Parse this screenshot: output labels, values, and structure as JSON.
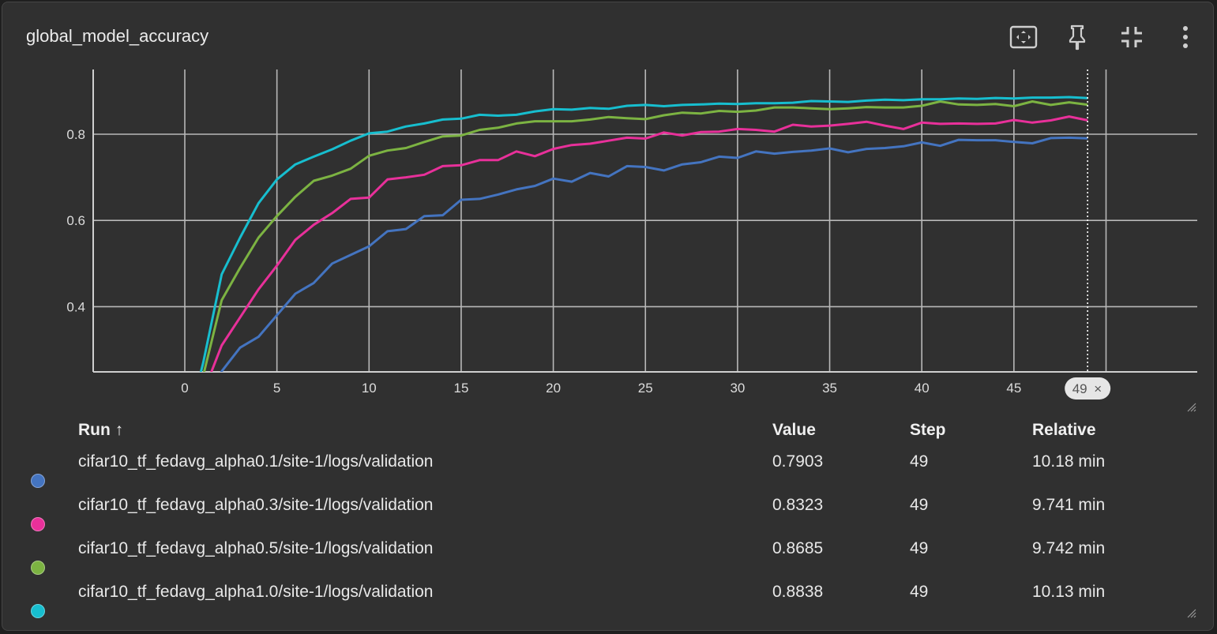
{
  "card": {
    "title": "global_model_accuracy",
    "icons": [
      "fit-to-data-icon",
      "pin-icon",
      "collapse-icon",
      "more-vert-icon"
    ]
  },
  "chart_data": {
    "type": "line",
    "title": "global_model_accuracy",
    "xlabel": "",
    "ylabel": "",
    "xlim": [
      -5,
      55
    ],
    "ylim": [
      0.25,
      0.95
    ],
    "x_ticks": [
      0,
      5,
      10,
      15,
      20,
      25,
      30,
      35,
      40,
      45,
      50
    ],
    "y_ticks": [
      0.4,
      0.6,
      0.8
    ],
    "grid": true,
    "cursor_step": 49,
    "cursor_label": "49",
    "series": [
      {
        "name": "cifar10_tf_fedavg_alpha0.1/site-1/logs/validation",
        "color": "#4474c0",
        "values": [
          0.1,
          0.17,
          0.25,
          0.305,
          0.33,
          0.38,
          0.43,
          0.455,
          0.5,
          0.52,
          0.54,
          0.575,
          0.58,
          0.61,
          0.612,
          0.648,
          0.65,
          0.66,
          0.672,
          0.68,
          0.697,
          0.69,
          0.71,
          0.702,
          0.726,
          0.724,
          0.716,
          0.73,
          0.735,
          0.748,
          0.745,
          0.76,
          0.755,
          0.759,
          0.762,
          0.767,
          0.758,
          0.766,
          0.768,
          0.772,
          0.781,
          0.773,
          0.787,
          0.786,
          0.786,
          0.782,
          0.779,
          0.791,
          0.792,
          0.7903
        ]
      },
      {
        "name": "cifar10_tf_fedavg_alpha0.3/site-1/logs/validation",
        "color": "#e8309a",
        "values": [
          0.1,
          0.2,
          0.31,
          0.375,
          0.44,
          0.495,
          0.555,
          0.59,
          0.617,
          0.65,
          0.653,
          0.695,
          0.7,
          0.706,
          0.726,
          0.728,
          0.74,
          0.74,
          0.76,
          0.749,
          0.766,
          0.775,
          0.778,
          0.785,
          0.792,
          0.79,
          0.804,
          0.797,
          0.805,
          0.806,
          0.812,
          0.81,
          0.806,
          0.822,
          0.818,
          0.82,
          0.824,
          0.829,
          0.82,
          0.812,
          0.827,
          0.824,
          0.825,
          0.824,
          0.825,
          0.833,
          0.827,
          0.832,
          0.841,
          0.8323
        ]
      },
      {
        "name": "cifar10_tf_fedavg_alpha0.5/site-1/logs/validation",
        "color": "#7cb342",
        "values": [
          0.1,
          0.24,
          0.415,
          0.49,
          0.56,
          0.61,
          0.655,
          0.692,
          0.704,
          0.72,
          0.75,
          0.762,
          0.768,
          0.782,
          0.795,
          0.797,
          0.81,
          0.815,
          0.825,
          0.83,
          0.83,
          0.83,
          0.834,
          0.84,
          0.837,
          0.835,
          0.844,
          0.85,
          0.848,
          0.854,
          0.852,
          0.855,
          0.862,
          0.862,
          0.86,
          0.858,
          0.86,
          0.863,
          0.862,
          0.862,
          0.866,
          0.876,
          0.869,
          0.868,
          0.87,
          0.865,
          0.876,
          0.868,
          0.874,
          0.8685
        ]
      },
      {
        "name": "cifar10_tf_fedavg_alpha1.0/site-1/logs/validation",
        "color": "#17becf",
        "values": [
          0.1,
          0.27,
          0.475,
          0.56,
          0.64,
          0.695,
          0.73,
          0.748,
          0.765,
          0.785,
          0.802,
          0.806,
          0.818,
          0.825,
          0.834,
          0.836,
          0.845,
          0.843,
          0.845,
          0.853,
          0.858,
          0.857,
          0.861,
          0.859,
          0.866,
          0.868,
          0.865,
          0.868,
          0.869,
          0.871,
          0.87,
          0.872,
          0.872,
          0.873,
          0.877,
          0.876,
          0.875,
          0.878,
          0.88,
          0.879,
          0.881,
          0.881,
          0.883,
          0.882,
          0.884,
          0.883,
          0.885,
          0.885,
          0.886,
          0.8838
        ]
      }
    ]
  },
  "table": {
    "headers": {
      "run": "Run",
      "sort_arrow": "↑",
      "value": "Value",
      "step": "Step",
      "relative": "Relative"
    },
    "rows": [
      {
        "run": "cifar10_tf_fedavg_alpha0.1/site-1/logs/validation",
        "value": "0.7903",
        "step": "49",
        "relative": "10.18 min",
        "color": "#4474c0"
      },
      {
        "run": "cifar10_tf_fedavg_alpha0.3/site-1/logs/validation",
        "value": "0.8323",
        "step": "49",
        "relative": "9.741 min",
        "color": "#e8309a"
      },
      {
        "run": "cifar10_tf_fedavg_alpha0.5/site-1/logs/validation",
        "value": "0.8685",
        "step": "49",
        "relative": "9.742 min",
        "color": "#7cb342"
      },
      {
        "run": "cifar10_tf_fedavg_alpha1.0/site-1/logs/validation",
        "value": "0.8838",
        "step": "49",
        "relative": "10.13 min",
        "color": "#17becf"
      }
    ]
  }
}
